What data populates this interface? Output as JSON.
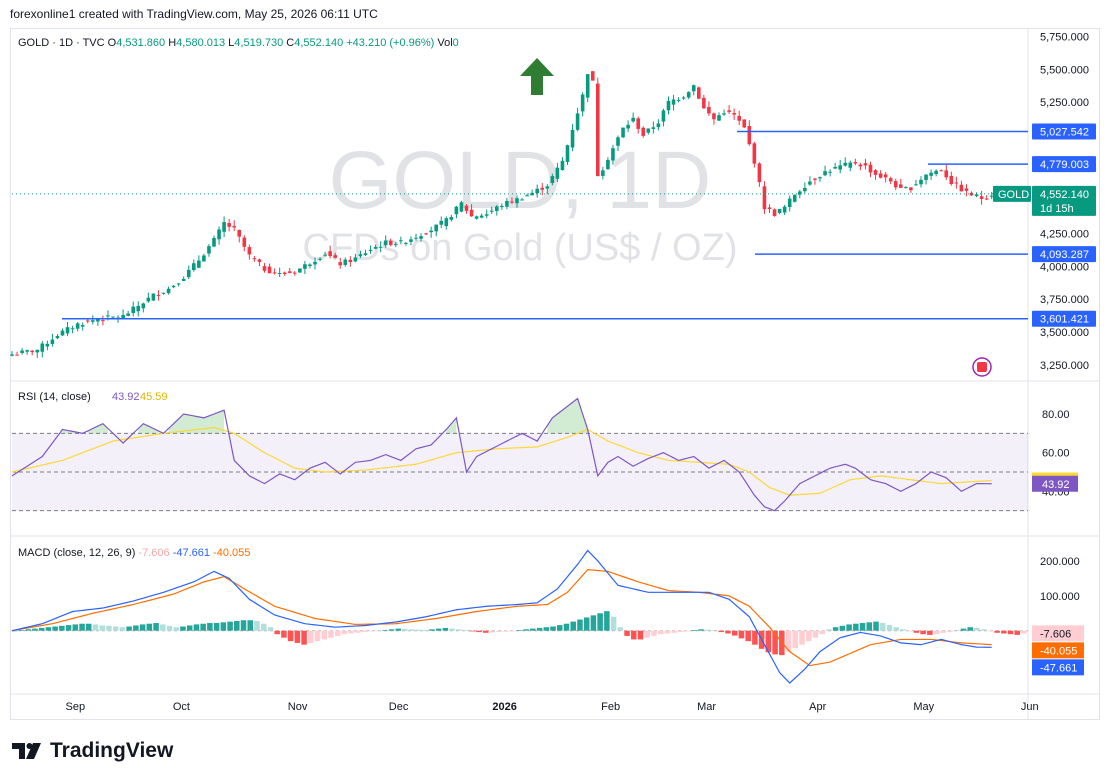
{
  "header": {
    "created_line": "forexonline1 created with TradingView.com, May 25, 2026 06:11 UTC"
  },
  "legend": {
    "symbol_line": "GOLD · 1D · TVC",
    "o_label": "O",
    "o_value": "4,531.860",
    "h_label": "H",
    "h_value": "4,580.013",
    "l_label": "L",
    "l_value": "4,519.730",
    "c_label": "C",
    "c_value": "4,552.140",
    "change": "+43.210 (+0.96%)",
    "vol_label": "Vol",
    "vol_value": "0"
  },
  "watermark": {
    "symbol": "GOLD, 1D",
    "description": "CFDs on Gold (US$ / OZ)"
  },
  "colors": {
    "up": "#089981",
    "down": "#f23645",
    "level_line": "#2962ff",
    "rsi": "#7e57c2",
    "rsi_ma": "#fdd835",
    "macd": "#2962ff",
    "signal": "#ff6d00",
    "arrow": "#2e7d32"
  },
  "chart_data": [
    {
      "type": "candlestick",
      "title": "GOLD, 1D",
      "subtitle": "CFDs on Gold (US$ / OZ)",
      "x_ticks": [
        "Sep",
        "Oct",
        "Nov",
        "Dec",
        "2026",
        "Feb",
        "Mar",
        "Apr",
        "May",
        "Jun"
      ],
      "y_ticks": [
        "5,750.000",
        "5,500.000",
        "5,250.000",
        "4,250.000",
        "4,000.000",
        "3,750.000",
        "3,500.000",
        "3,250.000"
      ],
      "ylim": [
        3150,
        5800
      ],
      "price_path": [
        [
          0,
          3330
        ],
        [
          5,
          3365
        ],
        [
          9,
          3480
        ],
        [
          13,
          3560
        ],
        [
          17,
          3600
        ],
        [
          22,
          3620
        ],
        [
          25,
          3700
        ],
        [
          28,
          3780
        ],
        [
          31,
          3830
        ],
        [
          34,
          3920
        ],
        [
          37,
          4050
        ],
        [
          40,
          4200
        ],
        [
          42,
          4330
        ],
        [
          44,
          4280
        ],
        [
          47,
          4080
        ],
        [
          50,
          3980
        ],
        [
          53,
          3940
        ],
        [
          56,
          3960
        ],
        [
          59,
          4030
        ],
        [
          62,
          4100
        ],
        [
          65,
          4020
        ],
        [
          68,
          4060
        ],
        [
          71,
          4130
        ],
        [
          74,
          4180
        ],
        [
          77,
          4180
        ],
        [
          80,
          4230
        ],
        [
          83,
          4280
        ],
        [
          86,
          4350
        ],
        [
          89,
          4480
        ],
        [
          91,
          4380
        ],
        [
          94,
          4400
        ],
        [
          97,
          4470
        ],
        [
          100,
          4510
        ],
        [
          103,
          4560
        ],
        [
          106,
          4620
        ],
        [
          109,
          4800
        ],
        [
          111,
          5050
        ],
        [
          113,
          5300
        ],
        [
          114,
          5480
        ],
        [
          115,
          5400
        ],
        [
          116,
          4700
        ],
        [
          117,
          4750
        ],
        [
          119,
          4900
        ],
        [
          121,
          5050
        ],
        [
          123,
          5120
        ],
        [
          125,
          5000
        ],
        [
          128,
          5100
        ],
        [
          130,
          5250
        ],
        [
          133,
          5300
        ],
        [
          135,
          5380
        ],
        [
          137,
          5200
        ],
        [
          139,
          5120
        ],
        [
          141,
          5180
        ],
        [
          143,
          5150
        ],
        [
          145,
          5050
        ],
        [
          147,
          4800
        ],
        [
          149,
          4450
        ],
        [
          151,
          4400
        ],
        [
          153,
          4450
        ],
        [
          155,
          4550
        ],
        [
          158,
          4650
        ],
        [
          161,
          4720
        ],
        [
          164,
          4760
        ],
        [
          167,
          4790
        ],
        [
          169,
          4760
        ],
        [
          171,
          4700
        ],
        [
          174,
          4650
        ],
        [
          176,
          4580
        ],
        [
          178,
          4600
        ],
        [
          181,
          4700
        ],
        [
          184,
          4740
        ],
        [
          186,
          4640
        ],
        [
          189,
          4560
        ],
        [
          192,
          4520
        ],
        [
          194,
          4552
        ]
      ],
      "levels": [
        {
          "label": "5,027.542",
          "value": 5027.542
        },
        {
          "label": "4,779.003",
          "value": 4779.003
        },
        {
          "label": "4,093.287",
          "value": 4093.287
        },
        {
          "label": "3,601.421",
          "value": 3601.421
        }
      ],
      "last_price": {
        "symbol": "GOLD",
        "value": "4,552.140",
        "countdown": "1d 15h"
      },
      "annotations": [
        "up-arrow"
      ]
    },
    {
      "type": "line",
      "title": "RSI (14, close)",
      "ma_value": "45.59",
      "rsi_value": "43.92",
      "y_ticks": [
        "80.00",
        "60.00",
        "40.00"
      ],
      "ylim": [
        20,
        95
      ],
      "bands": [
        30,
        70
      ],
      "rsi_path": [
        [
          0,
          48
        ],
        [
          6,
          58
        ],
        [
          10,
          72
        ],
        [
          14,
          70
        ],
        [
          18,
          75
        ],
        [
          22,
          65
        ],
        [
          26,
          75
        ],
        [
          30,
          70
        ],
        [
          34,
          80
        ],
        [
          38,
          78
        ],
        [
          42,
          82
        ],
        [
          44,
          56
        ],
        [
          47,
          48
        ],
        [
          50,
          44
        ],
        [
          53,
          49
        ],
        [
          56,
          46
        ],
        [
          59,
          52
        ],
        [
          62,
          55
        ],
        [
          65,
          49
        ],
        [
          68,
          55
        ],
        [
          71,
          56
        ],
        [
          74,
          59
        ],
        [
          77,
          56
        ],
        [
          80,
          62
        ],
        [
          83,
          64
        ],
        [
          86,
          72
        ],
        [
          88,
          78
        ],
        [
          90,
          50
        ],
        [
          92,
          58
        ],
        [
          95,
          62
        ],
        [
          98,
          66
        ],
        [
          101,
          70
        ],
        [
          104,
          66
        ],
        [
          107,
          78
        ],
        [
          110,
          84
        ],
        [
          112,
          88
        ],
        [
          114,
          72
        ],
        [
          116,
          48
        ],
        [
          118,
          55
        ],
        [
          120,
          58
        ],
        [
          123,
          53
        ],
        [
          126,
          57
        ],
        [
          129,
          60
        ],
        [
          132,
          56
        ],
        [
          135,
          58
        ],
        [
          138,
          52
        ],
        [
          141,
          56
        ],
        [
          144,
          50
        ],
        [
          147,
          38
        ],
        [
          149,
          32
        ],
        [
          151,
          30
        ],
        [
          153,
          35
        ],
        [
          156,
          44
        ],
        [
          159,
          48
        ],
        [
          162,
          52
        ],
        [
          165,
          54
        ],
        [
          167,
          52
        ],
        [
          170,
          46
        ],
        [
          173,
          44
        ],
        [
          176,
          40
        ],
        [
          179,
          44
        ],
        [
          182,
          50
        ],
        [
          185,
          47
        ],
        [
          188,
          40
        ],
        [
          191,
          44
        ],
        [
          194,
          43.92
        ]
      ],
      "ma_path": [
        [
          0,
          50
        ],
        [
          10,
          56
        ],
        [
          20,
          66
        ],
        [
          30,
          70
        ],
        [
          40,
          73
        ],
        [
          44,
          70
        ],
        [
          50,
          60
        ],
        [
          56,
          52
        ],
        [
          62,
          50
        ],
        [
          70,
          51
        ],
        [
          80,
          54
        ],
        [
          88,
          60
        ],
        [
          96,
          62
        ],
        [
          104,
          63
        ],
        [
          110,
          68
        ],
        [
          114,
          72
        ],
        [
          118,
          66
        ],
        [
          124,
          60
        ],
        [
          130,
          56
        ],
        [
          136,
          55
        ],
        [
          142,
          54
        ],
        [
          146,
          50
        ],
        [
          150,
          42
        ],
        [
          154,
          38
        ],
        [
          160,
          39
        ],
        [
          166,
          46
        ],
        [
          172,
          48
        ],
        [
          178,
          46
        ],
        [
          184,
          44
        ],
        [
          190,
          45
        ],
        [
          194,
          45.59
        ]
      ]
    },
    {
      "type": "bar",
      "title": "MACD (close, 12, 26, 9)",
      "histogram_value": "-7.606",
      "signal_value": "-40.055",
      "macd_value": "-47.661",
      "y_ticks": [
        "200.000",
        "100.000"
      ],
      "ylim": [
        -170,
        260
      ],
      "macd_path": [
        [
          0,
          0
        ],
        [
          6,
          20
        ],
        [
          12,
          55
        ],
        [
          18,
          65
        ],
        [
          24,
          85
        ],
        [
          30,
          110
        ],
        [
          36,
          140
        ],
        [
          40,
          170
        ],
        [
          43,
          150
        ],
        [
          47,
          90
        ],
        [
          52,
          45
        ],
        [
          58,
          20
        ],
        [
          64,
          10
        ],
        [
          70,
          15
        ],
        [
          76,
          25
        ],
        [
          82,
          40
        ],
        [
          88,
          60
        ],
        [
          94,
          70
        ],
        [
          100,
          75
        ],
        [
          104,
          80
        ],
        [
          108,
          120
        ],
        [
          112,
          190
        ],
        [
          114,
          230
        ],
        [
          116,
          200
        ],
        [
          120,
          130
        ],
        [
          126,
          110
        ],
        [
          132,
          110
        ],
        [
          138,
          110
        ],
        [
          142,
          90
        ],
        [
          146,
          40
        ],
        [
          149,
          -40
        ],
        [
          152,
          -120
        ],
        [
          154,
          -150
        ],
        [
          157,
          -110
        ],
        [
          160,
          -60
        ],
        [
          164,
          -20
        ],
        [
          168,
          -5
        ],
        [
          172,
          -15
        ],
        [
          176,
          -35
        ],
        [
          180,
          -40
        ],
        [
          184,
          -25
        ],
        [
          188,
          -40
        ],
        [
          191,
          -47
        ],
        [
          194,
          -47.661
        ]
      ],
      "signal_path": [
        [
          0,
          0
        ],
        [
          8,
          20
        ],
        [
          16,
          50
        ],
        [
          24,
          75
        ],
        [
          32,
          105
        ],
        [
          38,
          140
        ],
        [
          42,
          155
        ],
        [
          46,
          120
        ],
        [
          52,
          70
        ],
        [
          60,
          35
        ],
        [
          68,
          18
        ],
        [
          76,
          20
        ],
        [
          84,
          35
        ],
        [
          92,
          55
        ],
        [
          100,
          70
        ],
        [
          106,
          75
        ],
        [
          110,
          110
        ],
        [
          114,
          175
        ],
        [
          118,
          170
        ],
        [
          124,
          140
        ],
        [
          130,
          115
        ],
        [
          136,
          110
        ],
        [
          142,
          100
        ],
        [
          146,
          70
        ],
        [
          150,
          10
        ],
        [
          154,
          -60
        ],
        [
          158,
          -100
        ],
        [
          162,
          -90
        ],
        [
          166,
          -65
        ],
        [
          170,
          -40
        ],
        [
          176,
          -25
        ],
        [
          182,
          -25
        ],
        [
          188,
          -35
        ],
        [
          194,
          -40.055
        ]
      ],
      "histogram": [
        0,
        2,
        4,
        6,
        8,
        10,
        12,
        14,
        16,
        18,
        20,
        20,
        18,
        15,
        14,
        12,
        10,
        12,
        15,
        18,
        20,
        22,
        18,
        14,
        10,
        12,
        15,
        18,
        20,
        22,
        22,
        24,
        26,
        28,
        30,
        30,
        28,
        20,
        10,
        -10,
        -20,
        -30,
        -35,
        -40,
        -35,
        -30,
        -25,
        -20,
        -15,
        -10,
        -8,
        -6,
        -4,
        -2,
        0,
        2,
        4,
        6,
        5,
        4,
        3,
        2,
        4,
        6,
        8,
        6,
        4,
        2,
        -2,
        -4,
        -6,
        -5,
        -4,
        -3,
        -2,
        2,
        4,
        6,
        8,
        10,
        12,
        16,
        20,
        26,
        32,
        38,
        44,
        50,
        56,
        40,
        10,
        -15,
        -25,
        -25,
        -20,
        -15,
        -10,
        -8,
        -6,
        -4,
        -2,
        2,
        4,
        3,
        2,
        -4,
        -8,
        -14,
        -22,
        -30,
        -40,
        -52,
        -62,
        -68,
        -70,
        -60,
        -50,
        -40,
        -30,
        -20,
        -10,
        4,
        10,
        14,
        18,
        20,
        22,
        24,
        26,
        22,
        16,
        10,
        4,
        -2,
        -6,
        -10,
        -12,
        -10,
        -6,
        -4,
        2,
        6,
        10,
        8,
        4,
        -2,
        -6,
        -8,
        -10,
        -12,
        -8
      ]
    }
  ],
  "brand": {
    "name": "TradingView"
  }
}
